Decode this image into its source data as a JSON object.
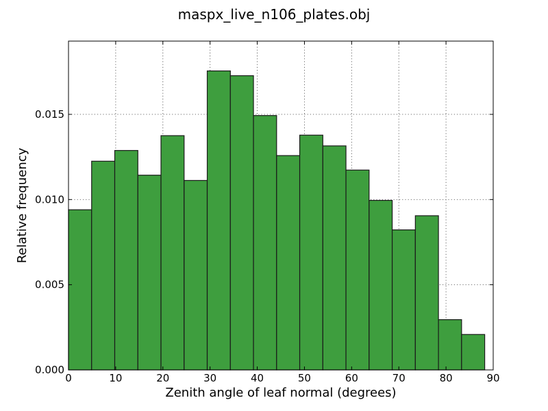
{
  "chart_data": {
    "type": "bar",
    "title": "maspx_live_n106_plates.obj",
    "xlabel": "Zenith angle of leaf normal (degrees)",
    "ylabel": "Relative frequency",
    "xlim": [
      0,
      90
    ],
    "ylim": [
      0,
      0.0193
    ],
    "xticks": [
      0,
      10,
      20,
      30,
      40,
      50,
      60,
      70,
      80,
      90
    ],
    "xtick_labels": [
      "0",
      "10",
      "20",
      "30",
      "40",
      "50",
      "60",
      "70",
      "80",
      "90"
    ],
    "yticks": [
      0,
      0.005,
      0.01,
      0.015
    ],
    "ytick_labels": [
      "0.000",
      "0.005",
      "0.010",
      "0.015"
    ],
    "grid": true,
    "bar_color": "#3e9e3e",
    "bar_edge_color": "#1a1a1a",
    "bins": [
      {
        "x0": 0.0,
        "x1": 4.9,
        "value": 0.0094
      },
      {
        "x0": 4.9,
        "x1": 9.8,
        "value": 0.01225
      },
      {
        "x0": 9.8,
        "x1": 14.7,
        "value": 0.01288
      },
      {
        "x0": 14.7,
        "x1": 19.6,
        "value": 0.01143
      },
      {
        "x0": 19.6,
        "x1": 24.5,
        "value": 0.01375
      },
      {
        "x0": 24.5,
        "x1": 29.4,
        "value": 0.01112
      },
      {
        "x0": 29.4,
        "x1": 34.3,
        "value": 0.01755
      },
      {
        "x0": 34.3,
        "x1": 39.2,
        "value": 0.01727
      },
      {
        "x0": 39.2,
        "x1": 44.1,
        "value": 0.01493
      },
      {
        "x0": 44.1,
        "x1": 49.0,
        "value": 0.01258
      },
      {
        "x0": 49.0,
        "x1": 53.9,
        "value": 0.01378
      },
      {
        "x0": 53.9,
        "x1": 58.8,
        "value": 0.01315
      },
      {
        "x0": 58.8,
        "x1": 63.7,
        "value": 0.01173
      },
      {
        "x0": 63.7,
        "x1": 68.6,
        "value": 0.00995
      },
      {
        "x0": 68.6,
        "x1": 73.5,
        "value": 0.00822
      },
      {
        "x0": 73.5,
        "x1": 78.4,
        "value": 0.00905
      },
      {
        "x0": 78.4,
        "x1": 83.3,
        "value": 0.00295
      },
      {
        "x0": 83.3,
        "x1": 88.2,
        "value": 0.00208
      }
    ]
  }
}
